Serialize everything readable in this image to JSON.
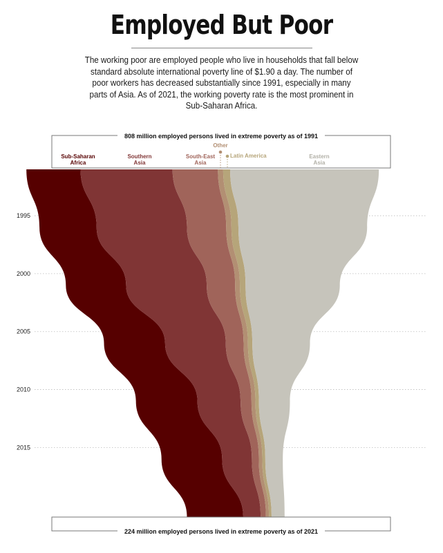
{
  "title": "Employed But Poor",
  "subtitle": "The working poor are employed people who live in households that fall below standard absolute international poverty line of $1.90 a day. The number of poor workers has decreased substantially since 1991, especially in many parts of Asia. As of 2021, the working poverty rate is the most prominent in Sub-Saharan Africa.",
  "top_note": "808 million employed persons lived in extreme poverty as of 1991",
  "bottom_note": "224 million employed persons lived in extreme poverty as of 2021",
  "colors": {
    "ssa": "#560000",
    "south": "#803535",
    "sea": "#a0645a",
    "other": "#b28f73",
    "latam": "#b6a57a",
    "east": "#c6c4bb"
  },
  "chart_data": {
    "type": "area",
    "title": "Employed But Poor",
    "x": [
      1991,
      1996,
      2001,
      2006,
      2011,
      2016,
      2021
    ],
    "ylim": [
      0,
      808
    ],
    "year_ticks": [
      "1995",
      "2000",
      "2005",
      "2010",
      "2015"
    ],
    "series": [
      {
        "name": "Sub-Saharan\nAfrica",
        "key": "ssa",
        "values": [
          124,
          131,
          138,
          140,
          141,
          139,
          129
        ]
      },
      {
        "name": "Southern\nAsia",
        "key": "south",
        "values": [
          211,
          207,
          185,
          139,
          99,
          68,
          40
        ]
      },
      {
        "name": "South-East\nAsia",
        "key": "sea",
        "values": [
          104,
          90,
          65,
          41,
          25,
          16,
          12
        ]
      },
      {
        "name": "Other",
        "key": "other",
        "values": [
          12,
          12,
          11,
          10,
          9,
          8,
          7
        ]
      },
      {
        "name": "Latin America",
        "key": "latam",
        "values": [
          16,
          16,
          13,
          10,
          8,
          7,
          6
        ]
      },
      {
        "name": "Eastern\nAsia",
        "key": "east",
        "values": [
          341,
          295,
          216,
          132,
          71,
          40,
          30
        ]
      }
    ]
  }
}
